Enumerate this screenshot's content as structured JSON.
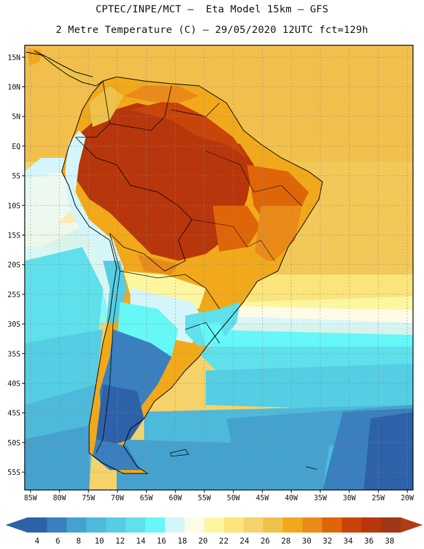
{
  "header": {
    "line1": "CPTEC/INPE/MCT –  Eta Model 15km – GFS",
    "line2": "2 Metre Temperature (C) – 29/05/2020 12UTC fct=129h"
  },
  "map": {
    "variable": "2 Metre Temperature",
    "units": "C",
    "lat_labels": [
      {
        "label": "15N",
        "value": 15
      },
      {
        "label": "10N",
        "value": 10
      },
      {
        "label": "5N",
        "value": 5
      },
      {
        "label": "EQ",
        "value": 0
      },
      {
        "label": "5S",
        "value": -5
      },
      {
        "label": "10S",
        "value": -10
      },
      {
        "label": "15S",
        "value": -15
      },
      {
        "label": "20S",
        "value": -20
      },
      {
        "label": "25S",
        "value": -25
      },
      {
        "label": "30S",
        "value": -30
      },
      {
        "label": "35S",
        "value": -35
      },
      {
        "label": "40S",
        "value": -40
      },
      {
        "label": "45S",
        "value": -45
      },
      {
        "label": "50S",
        "value": -50
      },
      {
        "label": "55S",
        "value": -55
      }
    ],
    "lon_labels": [
      {
        "label": "85W",
        "value": -85
      },
      {
        "label": "80W",
        "value": -80
      },
      {
        "label": "75W",
        "value": -75
      },
      {
        "label": "70W",
        "value": -70
      },
      {
        "label": "65W",
        "value": -65
      },
      {
        "label": "60W",
        "value": -60
      },
      {
        "label": "55W",
        "value": -55
      },
      {
        "label": "50W",
        "value": -50
      },
      {
        "label": "45W",
        "value": -45
      },
      {
        "label": "40W",
        "value": -40
      },
      {
        "label": "35W",
        "value": -35
      },
      {
        "label": "30W",
        "value": -30
      },
      {
        "label": "25W",
        "value": -25
      },
      {
        "label": "20W",
        "value": -20
      }
    ],
    "extent": {
      "lon_min": -86,
      "lon_max": -19,
      "lat_min": -58,
      "lat_max": 17
    }
  },
  "colorbar": {
    "levels": [
      "4",
      "6",
      "8",
      "10",
      "12",
      "14",
      "16",
      "18",
      "20",
      "22",
      "24",
      "26",
      "28",
      "30",
      "32",
      "34",
      "36",
      "38"
    ],
    "colors": [
      "#2e62a8",
      "#3a7fbe",
      "#45a2cf",
      "#4dbadb",
      "#55cde3",
      "#5fe0ea",
      "#66f7f7",
      "#d4f6fb",
      "#fefbe7",
      "#fdf6a0",
      "#fbe57a",
      "#f5d26a",
      "#eec24a",
      "#f1a91b",
      "#ea8a18",
      "#df6509",
      "#c8440a",
      "#b8360b",
      "#9e3716"
    ],
    "under_color": "#2e62a8",
    "over_color": "#b23c12"
  }
}
